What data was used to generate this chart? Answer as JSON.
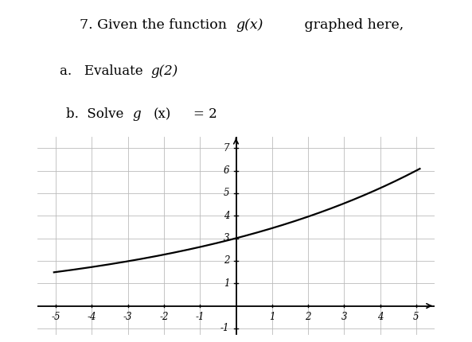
{
  "title_line1": "7. Given the function  ",
  "title_gx": "g(x)",
  "title_rest": " graphed here,",
  "item_a_prefix": "a.   Evaluate  ",
  "item_a_func": "g(2)",
  "item_b_prefix": "b.  Solve  ",
  "item_b_func": "g",
  "item_b_mid": "(x)",
  "item_b_eq": "= 2",
  "func_a": 3.0,
  "func_base": 2.0,
  "func_scale": 5.0,
  "xmin": -5,
  "xmax": 5,
  "ymin": -1,
  "ymax": 7,
  "xticks": [
    -5,
    -4,
    -3,
    -2,
    -1,
    1,
    2,
    3,
    4,
    5
  ],
  "yticks": [
    1,
    2,
    3,
    4,
    5,
    6,
    7
  ],
  "grid_color": "#bbbbbb",
  "curve_color": "#000000",
  "background": "#ffffff",
  "text_color": "#000000",
  "fig_width": 5.93,
  "fig_height": 4.3
}
